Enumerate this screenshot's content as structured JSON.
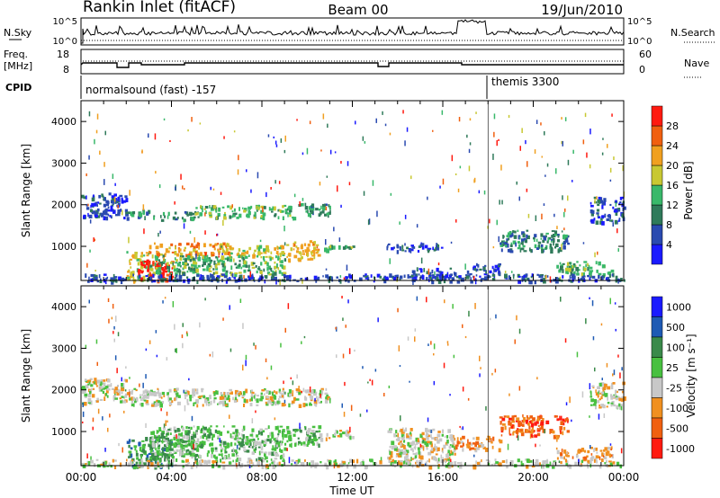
{
  "header": {
    "station": "Rankin Inlet (fitACF)",
    "beam": "Beam 00",
    "date": "19/Jun/2010"
  },
  "top_panels": {
    "nsky_label": "N.Sky",
    "nsky_ticks": [
      "10^5",
      "10^0"
    ],
    "nsearch_label": "N.Search",
    "nsearch_ticks": [
      "10^5",
      "10^0"
    ],
    "freq_label": "Freq.",
    "freq_unit": "[MHz]",
    "freq_ticks": [
      "18",
      "8"
    ],
    "nave_label": "Nave",
    "nave_ticks": [
      "60",
      "0"
    ],
    "cpid_label": "CPID",
    "cpid_modes": [
      {
        "name": "normalsound (fast) -157",
        "start_hour": 0
      },
      {
        "name": "themis 3300",
        "start_hour": 18
      }
    ]
  },
  "colors": {
    "power": [
      "#1a1aff",
      "#2a4ab0",
      "#2f7a5a",
      "#39b86a",
      "#c8c832",
      "#f0a020",
      "#f06010",
      "#ff1a10"
    ],
    "velocity": [
      "#1a1aff",
      "#1e5ab4",
      "#3a8a4a",
      "#48c040",
      "#c8c8c8",
      "#f09020",
      "#f06010",
      "#ff1a10"
    ]
  },
  "chart_data": [
    {
      "type": "heatmap",
      "name": "power",
      "ylabel": "Slant Range [km]",
      "xlim": [
        0,
        24
      ],
      "ylim": [
        180,
        4500
      ],
      "y_ticks": [
        1000,
        2000,
        3000,
        4000
      ],
      "colorbar_label": "Power [dB]",
      "colorbar_ticks": [
        "4",
        "8",
        "12",
        "16",
        "20",
        "24",
        "28"
      ],
      "colorbar_range": [
        0,
        32
      ],
      "bands": [
        {
          "x": [
            0.0,
            2.0
          ],
          "y": [
            1700,
            2300
          ],
          "level": 1
        },
        {
          "x": [
            2.0,
            3.2
          ],
          "y": [
            1700,
            1900
          ],
          "level": 2
        },
        {
          "x": [
            3.5,
            5.0
          ],
          "y": [
            1650,
            1850
          ],
          "level": 2
        },
        {
          "x": [
            5.0,
            9.5
          ],
          "y": [
            1700,
            2000
          ],
          "level": 3
        },
        {
          "x": [
            9.5,
            11.0
          ],
          "y": [
            1750,
            2050
          ],
          "level": 2
        },
        {
          "x": [
            2.0,
            3.0
          ],
          "y": [
            180,
            900
          ],
          "level": 4
        },
        {
          "x": [
            2.5,
            4.0
          ],
          "y": [
            180,
            700
          ],
          "level": 7
        },
        {
          "x": [
            3.0,
            6.5
          ],
          "y": [
            800,
            1100
          ],
          "level": 5
        },
        {
          "x": [
            6.5,
            9.0
          ],
          "y": [
            800,
            1050
          ],
          "level": 4
        },
        {
          "x": [
            9.0,
            10.5
          ],
          "y": [
            700,
            1150
          ],
          "level": 5
        },
        {
          "x": [
            10.5,
            12.0
          ],
          "y": [
            900,
            1050
          ],
          "level": 3
        },
        {
          "x": [
            3.0,
            9.0
          ],
          "y": [
            350,
            800
          ],
          "level": 3
        },
        {
          "x": [
            13.5,
            16.0
          ],
          "y": [
            900,
            1100
          ],
          "level": 1
        },
        {
          "x": [
            14.5,
            16.5
          ],
          "y": [
            250,
            500
          ],
          "level": 1
        },
        {
          "x": [
            17.0,
            18.5
          ],
          "y": [
            350,
            600
          ],
          "level": 1
        },
        {
          "x": [
            18.5,
            21.5
          ],
          "y": [
            900,
            1400
          ],
          "level": 2
        },
        {
          "x": [
            21.0,
            23.5
          ],
          "y": [
            350,
            650
          ],
          "level": 3
        },
        {
          "x": [
            22.5,
            24.0
          ],
          "y": [
            1600,
            2200
          ],
          "level": 1
        },
        {
          "x": [
            0.0,
            24.0
          ],
          "y": [
            180,
            350
          ],
          "level": 1
        }
      ]
    },
    {
      "type": "heatmap",
      "name": "velocity",
      "xlabel": "Time UT",
      "ylabel": "Slant Range [km]",
      "xlim": [
        0,
        24
      ],
      "ylim": [
        180,
        4500
      ],
      "x_ticks": [
        "00:00",
        "04:00",
        "08:00",
        "12:00",
        "16:00",
        "20:00",
        "00:00"
      ],
      "y_ticks": [
        1000,
        2000,
        3000,
        4000
      ],
      "colorbar_label": "Velocity [m s⁻¹]",
      "colorbar_ticks": [
        "1000",
        "500",
        "100",
        "25",
        "-25",
        "-100",
        "-500",
        "-1000"
      ],
      "bands": [
        {
          "x": [
            0.0,
            2.0
          ],
          "y": [
            1700,
            2300
          ],
          "level": 4
        },
        {
          "x": [
            2.0,
            11.0
          ],
          "y": [
            1650,
            2050
          ],
          "level": 4
        },
        {
          "x": [
            2.0,
            4.0
          ],
          "y": [
            180,
            900
          ],
          "level": 2
        },
        {
          "x": [
            3.0,
            10.5
          ],
          "y": [
            700,
            1150
          ],
          "level": 3
        },
        {
          "x": [
            3.0,
            9.0
          ],
          "y": [
            350,
            800
          ],
          "level": 3
        },
        {
          "x": [
            10.5,
            12.0
          ],
          "y": [
            850,
            1050
          ],
          "level": 4
        },
        {
          "x": [
            13.5,
            16.5
          ],
          "y": [
            350,
            1100
          ],
          "level": 4
        },
        {
          "x": [
            16.5,
            18.5
          ],
          "y": [
            600,
            900
          ],
          "level": 5
        },
        {
          "x": [
            18.5,
            21.5
          ],
          "y": [
            900,
            1400
          ],
          "level": 6
        },
        {
          "x": [
            21.0,
            23.5
          ],
          "y": [
            350,
            650
          ],
          "level": 5
        },
        {
          "x": [
            22.5,
            24.0
          ],
          "y": [
            1600,
            2200
          ],
          "level": 4
        },
        {
          "x": [
            0.0,
            24.0
          ],
          "y": [
            180,
            350
          ],
          "level": 4
        }
      ]
    }
  ]
}
